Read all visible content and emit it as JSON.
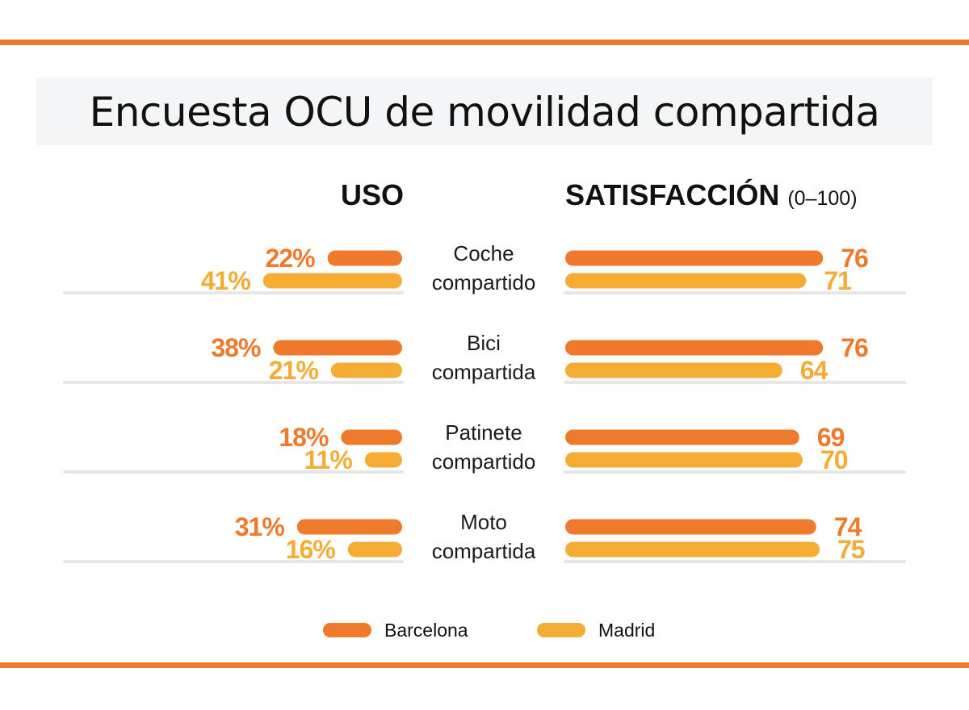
{
  "title": "Encuesta OCU de movilidad compartida",
  "colors": {
    "rule": "#ef7a2b",
    "barcelona": "#ef7a2b",
    "madrid": "#f5ac35",
    "baseline": "#e6e6e6"
  },
  "chart_data": [
    {
      "type": "bar",
      "title": "USO",
      "subtitle": "",
      "orientation": "horizontal",
      "direction": "right-to-left",
      "value_suffix": "%",
      "categories": [
        "Coche compartido",
        "Bici compartida",
        "Patinete compartido",
        "Moto compartida"
      ],
      "series": [
        {
          "name": "Barcelona",
          "values": [
            22,
            38,
            18,
            31
          ]
        },
        {
          "name": "Madrid",
          "values": [
            41,
            21,
            11,
            16
          ]
        }
      ],
      "xlim": [
        0,
        100
      ]
    },
    {
      "type": "bar",
      "title": "SATISFACCIÓN",
      "subtitle": "(0–100)",
      "orientation": "horizontal",
      "direction": "left-to-right",
      "value_suffix": "",
      "categories": [
        "Coche compartido",
        "Bici compartida",
        "Patinete compartido",
        "Moto compartida"
      ],
      "series": [
        {
          "name": "Barcelona",
          "values": [
            76,
            76,
            69,
            74
          ]
        },
        {
          "name": "Madrid",
          "values": [
            71,
            64,
            70,
            75
          ]
        }
      ],
      "xlim": [
        0,
        100
      ]
    }
  ],
  "category_lines": [
    [
      "Coche",
      "compartido"
    ],
    [
      "Bici",
      "compartida"
    ],
    [
      "Patinete",
      "compartido"
    ],
    [
      "Moto",
      "compartida"
    ]
  ],
  "legend": [
    {
      "name": "Barcelona",
      "color": "#ef7a2b"
    },
    {
      "name": "Madrid",
      "color": "#f5ac35"
    }
  ]
}
